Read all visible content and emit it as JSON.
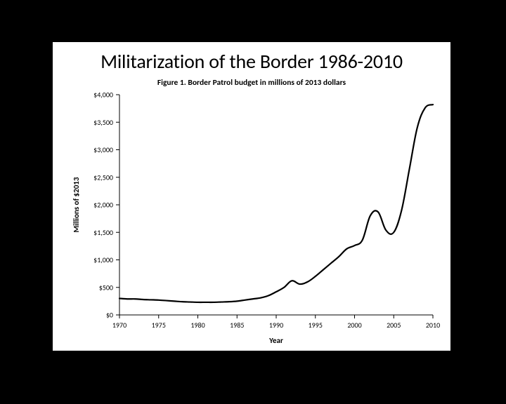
{
  "slide": {
    "title": "Militarization of the Border 1986-2010",
    "background": "#ffffff"
  },
  "page_background": "#000000",
  "chart": {
    "type": "line",
    "figure_title": "Figure 1.  Border Patrol budget in millions of 2013 dollars",
    "title_fontsize": 11.5,
    "xlabel": "Year",
    "ylabel": "Millions of $2013",
    "label_fontsize": 11,
    "tick_fontsize": 10,
    "xlim": [
      1970,
      2010
    ],
    "ylim": [
      0,
      4000
    ],
    "xtick_step": 5,
    "xticks": [
      1970,
      1975,
      1980,
      1985,
      1990,
      1995,
      2000,
      2005,
      2010
    ],
    "yticks": [
      0,
      500,
      1000,
      1500,
      2000,
      2500,
      3000,
      3500,
      4000
    ],
    "ytick_labels": [
      "$0",
      "$500",
      "$1,000",
      "$1,500",
      "$2,000",
      "$2,500",
      "$3,000",
      "$3,500",
      "$4,000"
    ],
    "line_color": "#000000",
    "line_width": 2.2,
    "axis_color": "#000000",
    "axis_width": 1,
    "tick_length": 5,
    "tick_color": "#000000",
    "tick_label_color": "#000000",
    "background_color": "#ffffff",
    "series": {
      "name": "Border Patrol budget",
      "x": [
        1970,
        1971,
        1972,
        1973,
        1974,
        1975,
        1976,
        1977,
        1978,
        1979,
        1980,
        1981,
        1982,
        1983,
        1984,
        1985,
        1986,
        1987,
        1988,
        1989,
        1990,
        1991,
        1992,
        1993,
        1994,
        1995,
        1996,
        1997,
        1998,
        1999,
        2000,
        2001,
        2002,
        2003,
        2004,
        2005,
        2006,
        2007,
        2008,
        2009,
        2010
      ],
      "y": [
        300,
        290,
        290,
        280,
        275,
        270,
        260,
        250,
        240,
        235,
        230,
        230,
        230,
        235,
        240,
        250,
        270,
        290,
        310,
        350,
        420,
        500,
        620,
        560,
        600,
        700,
        820,
        940,
        1060,
        1200,
        1260,
        1360,
        1800,
        1870,
        1540,
        1500,
        1900,
        2650,
        3400,
        3760,
        3820
      ]
    }
  }
}
